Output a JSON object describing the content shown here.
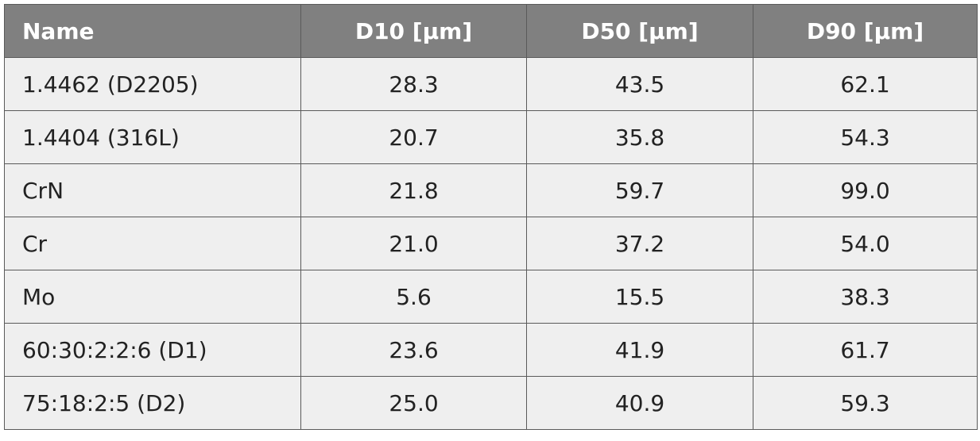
{
  "table": {
    "header": [
      "Name",
      "D10 [µm]",
      "D50 [µm]",
      "D90 [µm]"
    ],
    "rows": [
      [
        "1.4462 (D2205)",
        "28.3",
        "43.5",
        "62.1"
      ],
      [
        "1.4404 (316L)",
        "20.7",
        "35.8",
        "54.3"
      ],
      [
        "CrN",
        "21.8",
        "59.7",
        "99.0"
      ],
      [
        "Cr",
        "21.0",
        "37.2",
        "54.0"
      ],
      [
        "Mo",
        "5.6",
        "15.5",
        "38.3"
      ],
      [
        "60:30:2:2:6 (D1)",
        "23.6",
        "41.9",
        "61.7"
      ],
      [
        "75:18:2:5 (D2)",
        "25.0",
        "40.9",
        "59.3"
      ]
    ]
  }
}
